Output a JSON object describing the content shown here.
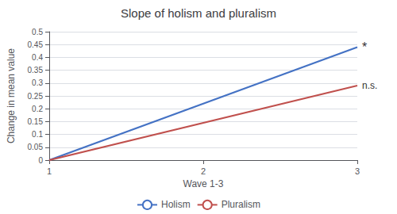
{
  "chart_data": {
    "type": "line",
    "title": "Slope of holism and pluralism",
    "xlabel": "Wave 1-3",
    "ylabel": "Change in mean value",
    "x": [
      1,
      3
    ],
    "series": [
      {
        "name": "Holism",
        "color": "#4472C4",
        "values": [
          0,
          0.44
        ],
        "annotation": "*"
      },
      {
        "name": "Pluralism",
        "color": "#C0504D",
        "values": [
          0,
          0.29
        ],
        "annotation": "n.s."
      }
    ],
    "xlim": [
      1,
      3
    ],
    "xticks": [
      1,
      2,
      3
    ],
    "ylim": [
      0,
      0.5
    ],
    "yticks": [
      0,
      0.05,
      0.1,
      0.15,
      0.2,
      0.25,
      0.3,
      0.35,
      0.4,
      0.45,
      0.5
    ],
    "grid": true,
    "legend": "bottom"
  }
}
